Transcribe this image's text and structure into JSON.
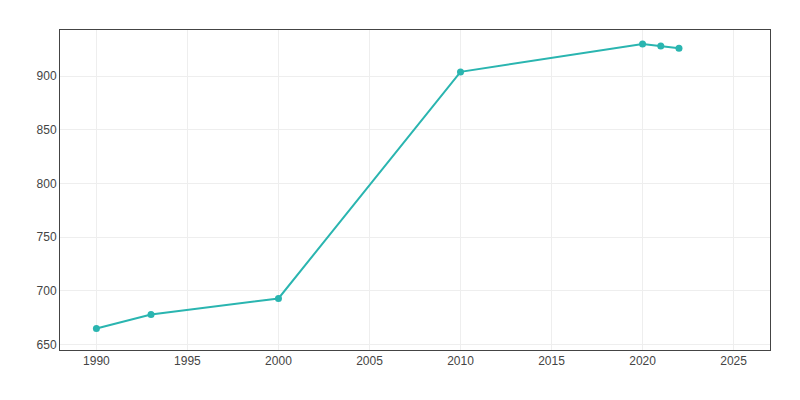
{
  "chart_data": {
    "type": "line",
    "x": [
      1990,
      1993,
      2000,
      2010,
      2020,
      2021,
      2022
    ],
    "values": [
      665,
      678,
      693,
      904,
      930,
      928,
      926
    ],
    "color": "#2ab5b0",
    "marker": "circle",
    "xlim": [
      1988,
      2027
    ],
    "ylim": [
      645,
      943
    ],
    "xticks": [
      1990,
      1995,
      2000,
      2005,
      2010,
      2015,
      2020,
      2025
    ],
    "yticks": [
      650,
      700,
      750,
      800,
      850,
      900
    ],
    "grid": true
  }
}
